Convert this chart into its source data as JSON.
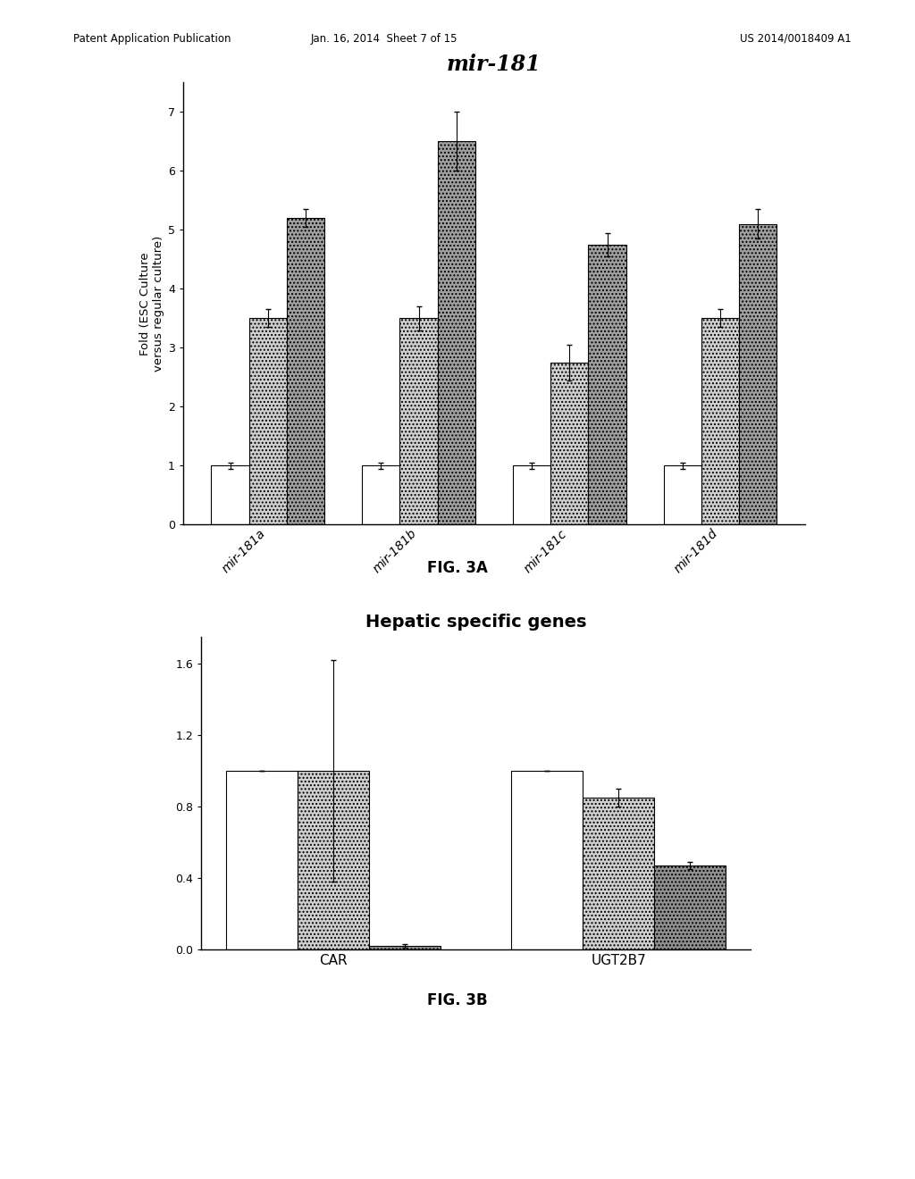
{
  "fig3a": {
    "title": "mir-181",
    "ylabel": "Fold (ESC Culture\nversus regular culture)",
    "categories": [
      "mir-181a",
      "mir-181b",
      "mir-181c",
      "mir-181d"
    ],
    "bar1_values": [
      1.0,
      1.0,
      1.0,
      1.0
    ],
    "bar2_values": [
      3.5,
      3.5,
      2.75,
      3.5
    ],
    "bar3_values": [
      5.2,
      6.5,
      4.75,
      5.1
    ],
    "bar1_errors": [
      0.05,
      0.05,
      0.05,
      0.05
    ],
    "bar2_errors": [
      0.15,
      0.2,
      0.3,
      0.15
    ],
    "bar3_errors": [
      0.15,
      0.5,
      0.2,
      0.25
    ],
    "bar1_color": "white",
    "bar2_color": "#d0d0d0",
    "bar3_color": "#a0a0a0",
    "ylim": [
      0,
      7.5
    ],
    "yticks": [
      0,
      1,
      2,
      3,
      4,
      5,
      6,
      7
    ],
    "edgecolor": "black",
    "bar_width": 0.25
  },
  "fig3b": {
    "title": "Hepatic specific genes",
    "ylabel": "",
    "categories": [
      "CAR",
      "UGT2B7"
    ],
    "bar1_values": [
      1.0,
      1.0
    ],
    "bar2_values": [
      1.0,
      0.85
    ],
    "bar3_values": [
      0.02,
      0.47
    ],
    "bar1_errors": [
      0.0,
      0.0
    ],
    "bar2_errors": [
      0.62,
      0.05
    ],
    "bar3_errors": [
      0.01,
      0.02
    ],
    "bar1_color": "white",
    "bar2_color": "#d0d0d0",
    "bar3_color": "#909090",
    "ylim": [
      0,
      1.75
    ],
    "yticks": [
      0.0,
      0.4,
      0.8,
      1.2,
      1.6
    ],
    "edgecolor": "black",
    "bar_width": 0.25
  },
  "page_header_left": "Patent Application Publication",
  "page_header_mid": "Jan. 16, 2014  Sheet 7 of 15",
  "page_header_right": "US 2014/0018409 A1",
  "fig3a_caption": "FIG. 3A",
  "fig3b_caption": "FIG. 3B",
  "background_color": "white",
  "text_color": "black"
}
